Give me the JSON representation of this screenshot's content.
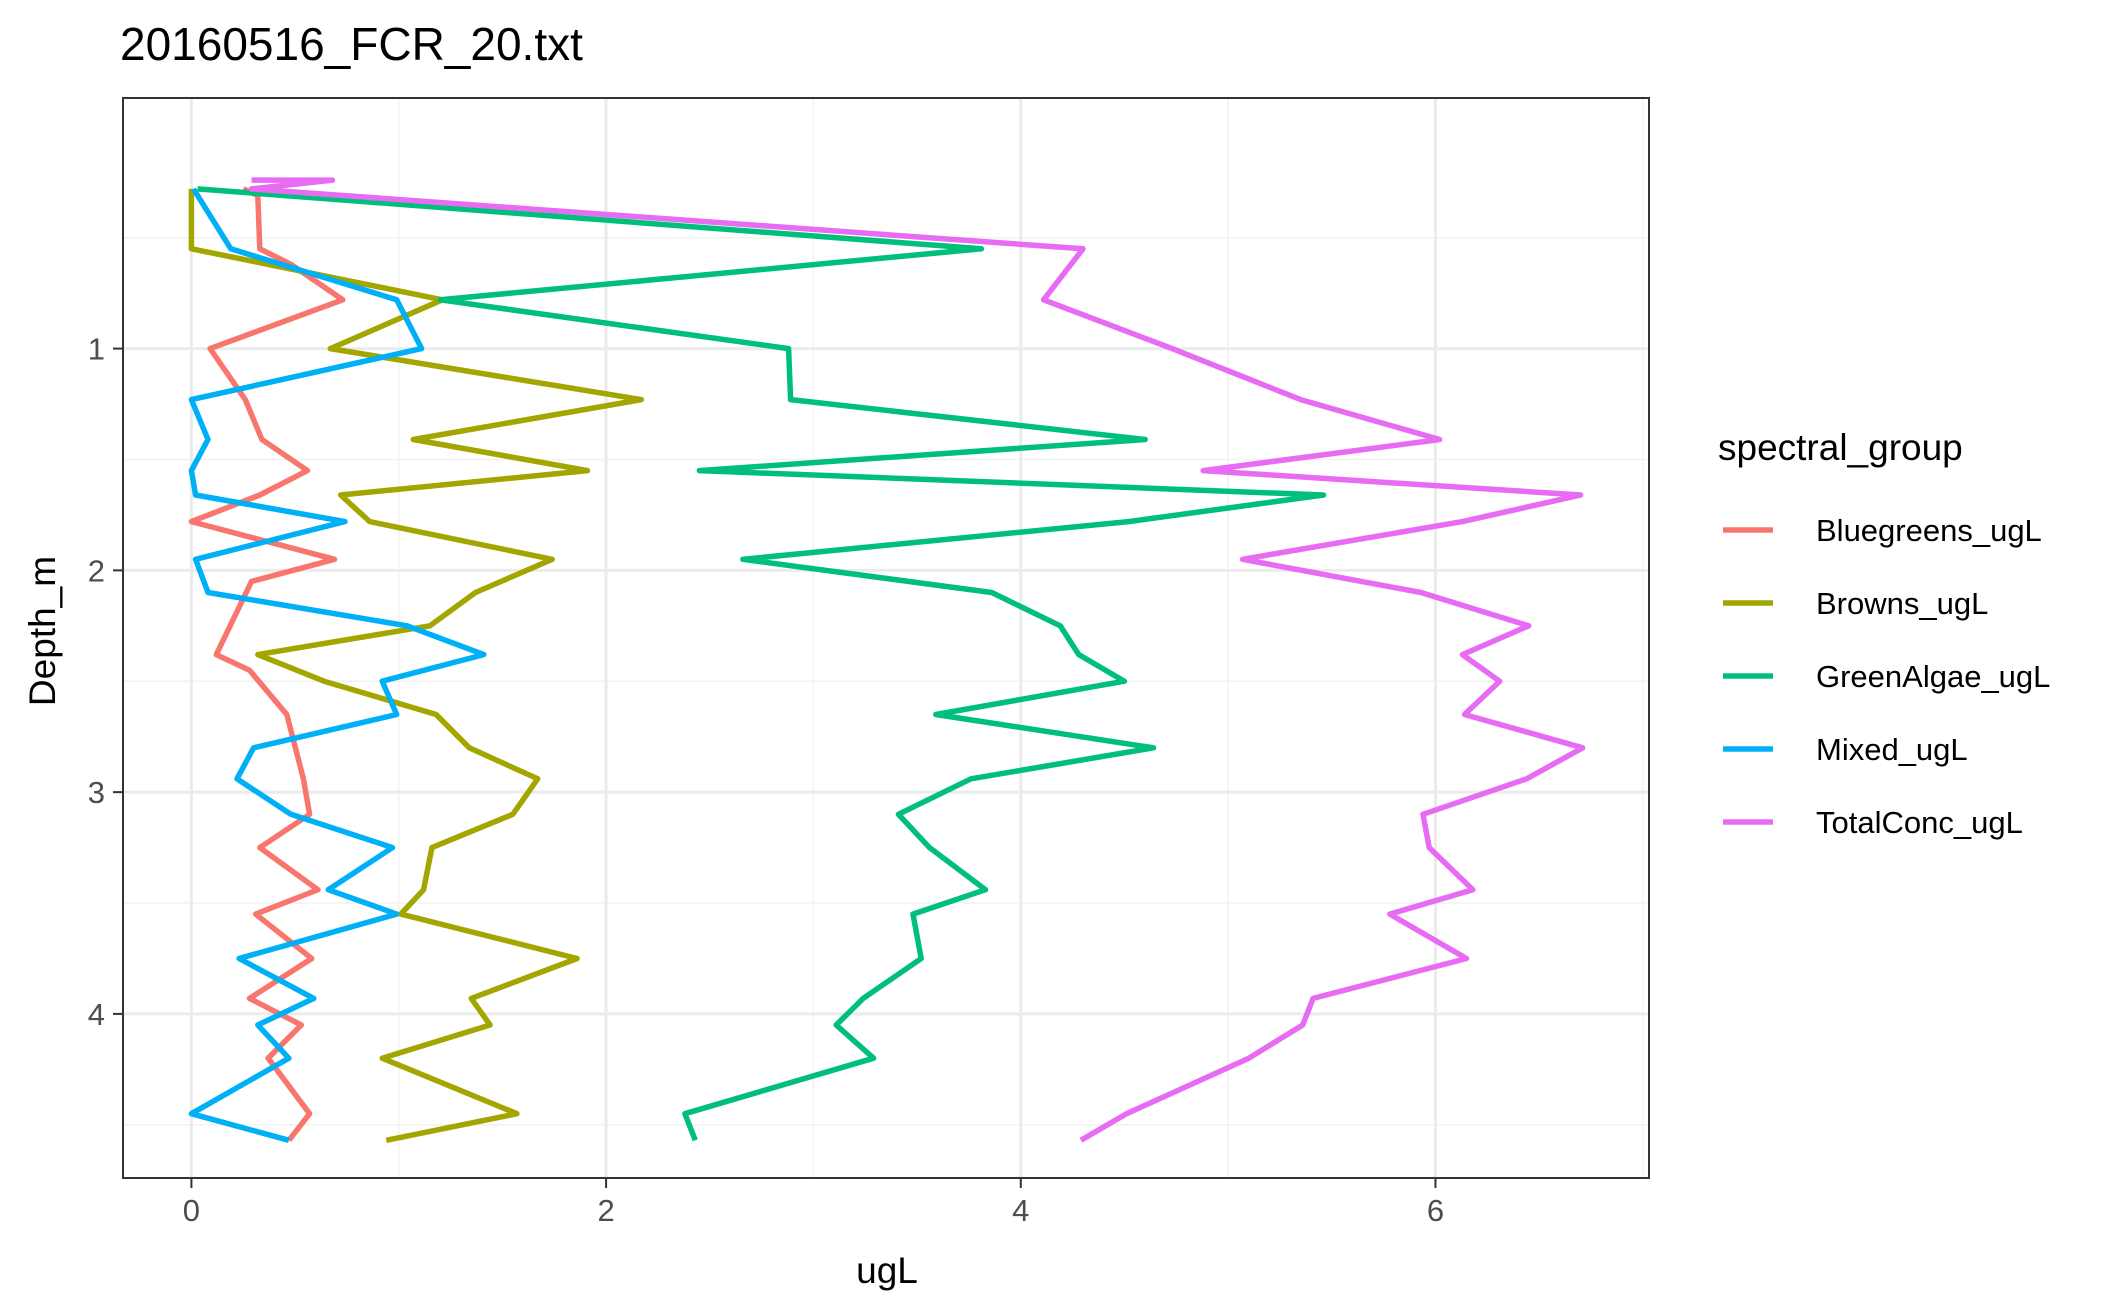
{
  "chart_data": {
    "type": "line",
    "title": "20160516_FCR_20.txt",
    "xlabel": "ugL",
    "ylabel": "Depth_m",
    "xlim": [
      -0.33,
      7.03
    ],
    "ylim": [
      -0.13,
      4.74
    ],
    "y_reversed": true,
    "x_ticks": [
      0,
      2,
      4,
      6
    ],
    "x_tick_labels": [
      "0",
      "2",
      "4",
      "6"
    ],
    "y_ticks": [
      1,
      2,
      3,
      4
    ],
    "y_tick_labels": [
      "1",
      "2",
      "3",
      "4"
    ],
    "grid": true,
    "legend": {
      "title": "spectral_group",
      "position": "right"
    },
    "series": [
      {
        "name": "Bluegreens_ugL",
        "color": "#F8766D",
        "points": [
          [
            0.25,
            0.28
          ],
          [
            0.32,
            0.31
          ],
          [
            0.33,
            0.55
          ],
          [
            0.48,
            0.62
          ],
          [
            0.73,
            0.78
          ],
          [
            0.09,
            1.0
          ],
          [
            0.26,
            1.23
          ],
          [
            0.34,
            1.41
          ],
          [
            0.56,
            1.55
          ],
          [
            0.33,
            1.66
          ],
          [
            0.0,
            1.78
          ],
          [
            0.69,
            1.95
          ],
          [
            0.29,
            2.05
          ],
          [
            0.12,
            2.38
          ],
          [
            0.28,
            2.45
          ],
          [
            0.46,
            2.65
          ],
          [
            0.54,
            2.94
          ],
          [
            0.57,
            3.1
          ],
          [
            0.33,
            3.25
          ],
          [
            0.61,
            3.44
          ],
          [
            0.31,
            3.55
          ],
          [
            0.58,
            3.75
          ],
          [
            0.28,
            3.93
          ],
          [
            0.53,
            4.05
          ],
          [
            0.37,
            4.2
          ],
          [
            0.57,
            4.45
          ],
          [
            0.47,
            4.57
          ]
        ]
      },
      {
        "name": "Browns_ugL",
        "color": "#A3A500",
        "points": [
          [
            0.0,
            0.28
          ],
          [
            0.0,
            0.55
          ],
          [
            1.21,
            0.78
          ],
          [
            0.67,
            1.0
          ],
          [
            2.17,
            1.23
          ],
          [
            1.07,
            1.41
          ],
          [
            1.91,
            1.55
          ],
          [
            0.72,
            1.66
          ],
          [
            0.86,
            1.78
          ],
          [
            1.74,
            1.95
          ],
          [
            1.37,
            2.1
          ],
          [
            1.15,
            2.25
          ],
          [
            0.32,
            2.38
          ],
          [
            0.64,
            2.5
          ],
          [
            1.18,
            2.65
          ],
          [
            1.34,
            2.8
          ],
          [
            1.67,
            2.94
          ],
          [
            1.55,
            3.1
          ],
          [
            1.16,
            3.25
          ],
          [
            1.12,
            3.44
          ],
          [
            1.01,
            3.55
          ],
          [
            1.86,
            3.75
          ],
          [
            1.35,
            3.93
          ],
          [
            1.44,
            4.05
          ],
          [
            0.92,
            4.2
          ],
          [
            1.57,
            4.45
          ],
          [
            0.94,
            4.57
          ]
        ]
      },
      {
        "name": "GreenAlgae_ugL",
        "color": "#00BF7D",
        "points": [
          [
            0.03,
            0.28
          ],
          [
            3.81,
            0.55
          ],
          [
            1.2,
            0.78
          ],
          [
            2.88,
            1.0
          ],
          [
            2.89,
            1.23
          ],
          [
            4.6,
            1.41
          ],
          [
            2.45,
            1.55
          ],
          [
            5.46,
            1.66
          ],
          [
            4.52,
            1.78
          ],
          [
            2.66,
            1.95
          ],
          [
            3.86,
            2.1
          ],
          [
            4.19,
            2.25
          ],
          [
            4.28,
            2.38
          ],
          [
            4.5,
            2.5
          ],
          [
            3.59,
            2.65
          ],
          [
            4.64,
            2.8
          ],
          [
            3.76,
            2.94
          ],
          [
            3.41,
            3.1
          ],
          [
            3.56,
            3.25
          ],
          [
            3.83,
            3.44
          ],
          [
            3.48,
            3.55
          ],
          [
            3.52,
            3.75
          ],
          [
            3.24,
            3.93
          ],
          [
            3.11,
            4.05
          ],
          [
            3.29,
            4.2
          ],
          [
            2.38,
            4.45
          ],
          [
            2.43,
            4.57
          ]
        ]
      },
      {
        "name": "Mixed_ugL",
        "color": "#00B0F6",
        "points": [
          [
            0.01,
            0.28
          ],
          [
            0.19,
            0.55
          ],
          [
            0.99,
            0.78
          ],
          [
            1.11,
            1.0
          ],
          [
            0.0,
            1.23
          ],
          [
            0.08,
            1.41
          ],
          [
            0.0,
            1.55
          ],
          [
            0.02,
            1.66
          ],
          [
            0.74,
            1.78
          ],
          [
            0.02,
            1.95
          ],
          [
            0.08,
            2.1
          ],
          [
            1.04,
            2.25
          ],
          [
            1.41,
            2.38
          ],
          [
            0.92,
            2.5
          ],
          [
            0.99,
            2.65
          ],
          [
            0.3,
            2.8
          ],
          [
            0.22,
            2.94
          ],
          [
            0.48,
            3.1
          ],
          [
            0.97,
            3.25
          ],
          [
            0.66,
            3.44
          ],
          [
            0.99,
            3.55
          ],
          [
            0.23,
            3.75
          ],
          [
            0.59,
            3.93
          ],
          [
            0.32,
            4.05
          ],
          [
            0.47,
            4.2
          ],
          [
            0.0,
            4.45
          ],
          [
            0.47,
            4.57
          ]
        ]
      },
      {
        "name": "TotalConc_ugL",
        "color": "#E76BF3",
        "points": [
          [
            0.29,
            0.24
          ],
          [
            0.68,
            0.24
          ],
          [
            0.29,
            0.28
          ],
          [
            4.3,
            0.55
          ],
          [
            4.11,
            0.78
          ],
          [
            4.73,
            1.0
          ],
          [
            5.35,
            1.23
          ],
          [
            6.02,
            1.41
          ],
          [
            4.88,
            1.55
          ],
          [
            6.7,
            1.66
          ],
          [
            6.13,
            1.78
          ],
          [
            5.07,
            1.95
          ],
          [
            5.93,
            2.1
          ],
          [
            6.45,
            2.25
          ],
          [
            6.13,
            2.38
          ],
          [
            6.31,
            2.5
          ],
          [
            6.14,
            2.65
          ],
          [
            6.71,
            2.8
          ],
          [
            6.44,
            2.94
          ],
          [
            5.94,
            3.1
          ],
          [
            5.97,
            3.25
          ],
          [
            6.18,
            3.44
          ],
          [
            5.78,
            3.55
          ],
          [
            6.15,
            3.75
          ],
          [
            5.41,
            3.93
          ],
          [
            5.36,
            4.05
          ],
          [
            5.1,
            4.2
          ],
          [
            4.51,
            4.45
          ],
          [
            4.29,
            4.57
          ]
        ]
      }
    ]
  }
}
